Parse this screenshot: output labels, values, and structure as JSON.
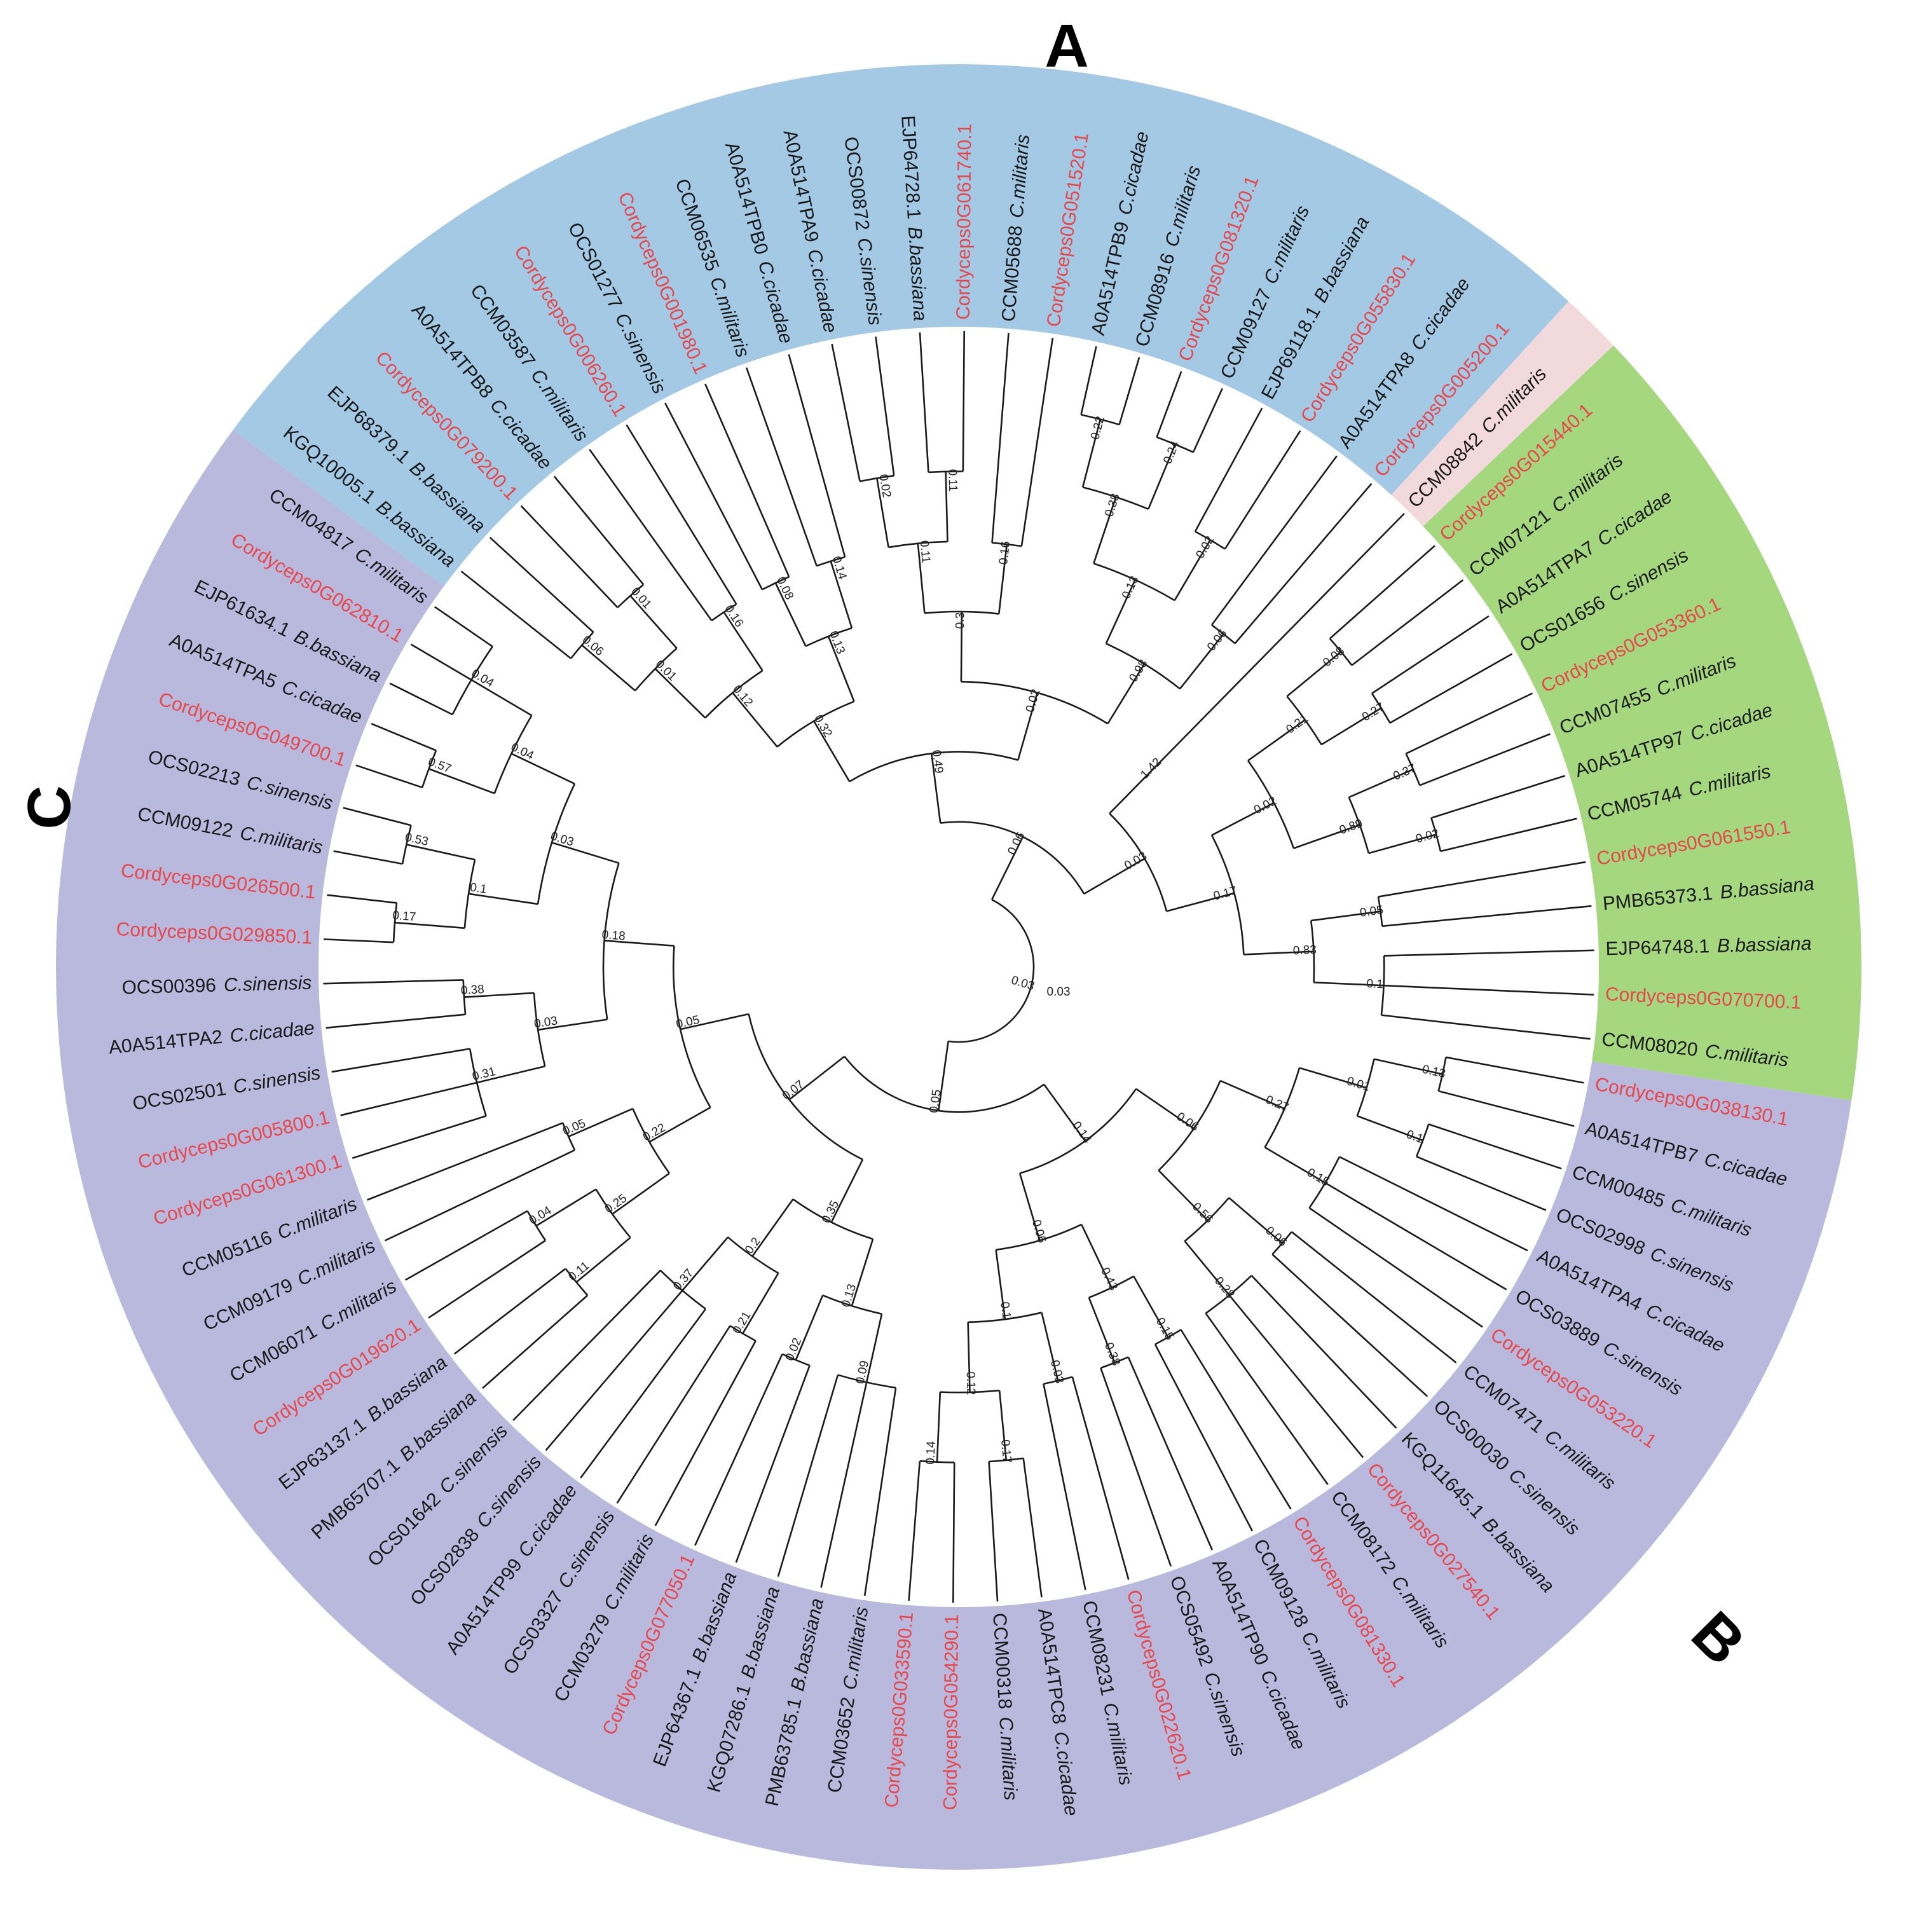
{
  "colors": {
    "A": "#a3c9e4",
    "B": "#b9b9dd",
    "C": "#a5d87e",
    "D": "#f2d9dc",
    "cordyceps": "#e8474b",
    "ink": "#1a1a1a"
  },
  "clade_labels": {
    "A": "A",
    "B": "B",
    "C": "C"
  },
  "root_label": "0.03",
  "leaves": [
    {
      "name": "KGQ10005.1",
      "sp": "B.bassiana",
      "g": "A"
    },
    {
      "name": "EJP68379.1",
      "sp": "B.bassiana",
      "g": "A"
    },
    {
      "name": "Cordyceps0G079200.1",
      "sp": "",
      "g": "A",
      "red": true
    },
    {
      "name": "A0A514TPB8",
      "sp": "C.cicadae",
      "g": "A"
    },
    {
      "name": "CCM03587",
      "sp": "C.militaris",
      "g": "A"
    },
    {
      "name": "Cordyceps0G006260.1",
      "sp": "",
      "g": "A",
      "red": true
    },
    {
      "name": "OCS01277",
      "sp": "C.sinensis",
      "g": "A"
    },
    {
      "name": "Cordyceps0G001980.1",
      "sp": "",
      "g": "A",
      "red": true
    },
    {
      "name": "CCM06535",
      "sp": "C.militaris",
      "g": "A"
    },
    {
      "name": "A0A514TPB0",
      "sp": "C.cicadae",
      "g": "A"
    },
    {
      "name": "A0A514TPA9",
      "sp": "C.cicadae",
      "g": "A"
    },
    {
      "name": "OCS00872",
      "sp": "C.sinensis",
      "g": "A"
    },
    {
      "name": "EJP64728.1",
      "sp": "B.bassiana",
      "g": "A"
    },
    {
      "name": "Cordyceps0G061740.1",
      "sp": "",
      "g": "A",
      "red": true
    },
    {
      "name": "CCM05688",
      "sp": "C.militaris",
      "g": "A"
    },
    {
      "name": "Cordyceps0G051520.1",
      "sp": "",
      "g": "A",
      "red": true
    },
    {
      "name": "A0A514TPB9",
      "sp": "C.cicadae",
      "g": "A"
    },
    {
      "name": "CCM08916",
      "sp": "C.militaris",
      "g": "A"
    },
    {
      "name": "Cordyceps0G081320.1",
      "sp": "",
      "g": "A",
      "red": true
    },
    {
      "name": "CCM09127",
      "sp": "C.militaris",
      "g": "A"
    },
    {
      "name": "EJP69118.1",
      "sp": "B.bassiana",
      "g": "A"
    },
    {
      "name": "Cordyceps0G055830.1",
      "sp": "",
      "g": "A",
      "red": true
    },
    {
      "name": "A0A514TPA8",
      "sp": "C.cicadae",
      "g": "A"
    },
    {
      "name": "Cordyceps0G005200.1",
      "sp": "",
      "g": "A",
      "red": true
    },
    {
      "name": "CCM08842",
      "sp": "C.militaris",
      "g": "D"
    },
    {
      "name": "Cordyceps0G015440.1",
      "sp": "",
      "g": "C",
      "red": true
    },
    {
      "name": "CCM07121",
      "sp": "C.militaris",
      "g": "C"
    },
    {
      "name": "A0A514TPA7",
      "sp": "C.cicadae",
      "g": "C"
    },
    {
      "name": "OCS01656",
      "sp": "C.sinensis",
      "g": "C"
    },
    {
      "name": "Cordyceps0G053360.1",
      "sp": "",
      "g": "C",
      "red": true
    },
    {
      "name": "CCM07455",
      "sp": "C.militaris",
      "g": "C"
    },
    {
      "name": "A0A514TP97",
      "sp": "C.cicadae",
      "g": "C"
    },
    {
      "name": "CCM05744",
      "sp": "C.militaris",
      "g": "C"
    },
    {
      "name": "Cordyceps0G061550.1",
      "sp": "",
      "g": "C",
      "red": true
    },
    {
      "name": "PMB65373.1",
      "sp": "B.bassiana",
      "g": "C"
    },
    {
      "name": "EJP64748.1",
      "sp": "B.bassiana",
      "g": "C"
    },
    {
      "name": "Cordyceps0G070700.1",
      "sp": "",
      "g": "C",
      "red": true
    },
    {
      "name": "CCM08020",
      "sp": "C.militaris",
      "g": "C"
    },
    {
      "name": "Cordyceps0G038130.1",
      "sp": "",
      "g": "B",
      "red": true
    },
    {
      "name": "A0A514TPB7",
      "sp": "C.cicadae",
      "g": "B"
    },
    {
      "name": "CCM00485",
      "sp": "C.militaris",
      "g": "B"
    },
    {
      "name": "OCS02998",
      "sp": "C.sinensis",
      "g": "B"
    },
    {
      "name": "A0A514TPA4",
      "sp": "C.cicadae",
      "g": "B"
    },
    {
      "name": "OCS03889",
      "sp": "C.sinensis",
      "g": "B"
    },
    {
      "name": "Cordyceps0G053220.1",
      "sp": "",
      "g": "B",
      "red": true
    },
    {
      "name": "CCM07471",
      "sp": "C.militaris",
      "g": "B"
    },
    {
      "name": "OCS00030",
      "sp": "C.sinensis",
      "g": "B"
    },
    {
      "name": "KGQ11645.1",
      "sp": "B.bassiana",
      "g": "B"
    },
    {
      "name": "Cordyceps0G027540.1",
      "sp": "",
      "g": "B",
      "red": true
    },
    {
      "name": "CCM08172",
      "sp": "C.militaris",
      "g": "B"
    },
    {
      "name": "Cordyceps0G081330.1",
      "sp": "",
      "g": "B",
      "red": true
    },
    {
      "name": "CCM09128",
      "sp": "C.militaris",
      "g": "B"
    },
    {
      "name": "A0A514TP90",
      "sp": "C.cicadae",
      "g": "B"
    },
    {
      "name": "OCS05492",
      "sp": "C.sinensis",
      "g": "B"
    },
    {
      "name": "Cordyceps0G022620.1",
      "sp": "",
      "g": "B",
      "red": true
    },
    {
      "name": "CCM08231",
      "sp": "C.militaris",
      "g": "B"
    },
    {
      "name": "A0A514TPC8",
      "sp": "C.cicadae",
      "g": "B"
    },
    {
      "name": "CCM00318",
      "sp": "C.militaris",
      "g": "B"
    },
    {
      "name": "Cordyceps0G054290.1",
      "sp": "",
      "g": "B",
      "red": true
    },
    {
      "name": "Cordyceps0G033590.1",
      "sp": "",
      "g": "B",
      "red": true
    },
    {
      "name": "CCM03652",
      "sp": "C.militaris",
      "g": "B"
    },
    {
      "name": "PMB63785.1",
      "sp": "B.bassiana",
      "g": "B"
    },
    {
      "name": "KGQ07286.1",
      "sp": "B.bassiana",
      "g": "B"
    },
    {
      "name": "EJP64367.1",
      "sp": "B.bassiana",
      "g": "B"
    },
    {
      "name": "Cordyceps0G077050.1",
      "sp": "",
      "g": "B",
      "red": true
    },
    {
      "name": "CCM03279",
      "sp": "C.militaris",
      "g": "B"
    },
    {
      "name": "OCS03327",
      "sp": "C.sinensis",
      "g": "B"
    },
    {
      "name": "A0A514TP99",
      "sp": "C.cicadae",
      "g": "B"
    },
    {
      "name": "OCS02838",
      "sp": "C.sinensis",
      "g": "B"
    },
    {
      "name": "OCS01642",
      "sp": "C.sinensis",
      "g": "B"
    },
    {
      "name": "PMB65707.1",
      "sp": "B.bassiana",
      "g": "B"
    },
    {
      "name": "EJP63137.1",
      "sp": "B.bassiana",
      "g": "B"
    },
    {
      "name": "Cordyceps0G019620.1",
      "sp": "",
      "g": "B",
      "red": true
    },
    {
      "name": "CCM06071",
      "sp": "C.militaris",
      "g": "B"
    },
    {
      "name": "CCM09179",
      "sp": "C.militaris",
      "g": "B"
    },
    {
      "name": "CCM05116",
      "sp": "C.militaris",
      "g": "B"
    },
    {
      "name": "Cordyceps0G061300.1",
      "sp": "",
      "g": "B",
      "red": true
    },
    {
      "name": "Cordyceps0G005800.1",
      "sp": "",
      "g": "B",
      "red": true
    },
    {
      "name": "OCS02501",
      "sp": "C.sinensis",
      "g": "B"
    },
    {
      "name": "A0A514TPA2",
      "sp": "C.cicadae",
      "g": "B"
    },
    {
      "name": "OCS00396",
      "sp": "C.sinensis",
      "g": "B"
    },
    {
      "name": "Cordyceps0G029850.1",
      "sp": "",
      "g": "B",
      "red": true
    },
    {
      "name": "Cordyceps0G026500.1",
      "sp": "",
      "g": "B",
      "red": true
    },
    {
      "name": "CCM09122",
      "sp": "C.militaris",
      "g": "B"
    },
    {
      "name": "OCS02213",
      "sp": "C.sinensis",
      "g": "B"
    },
    {
      "name": "Cordyceps0G049700.1",
      "sp": "",
      "g": "B",
      "red": true
    },
    {
      "name": "A0A514TPA5",
      "sp": "C.cicadae",
      "g": "B"
    },
    {
      "name": "EJP61634.1",
      "sp": "B.bassiana",
      "g": "B"
    },
    {
      "name": "Cordyceps0G062810.1",
      "sp": "",
      "g": "B",
      "red": true
    },
    {
      "name": "CCM04817",
      "sp": "C.militaris",
      "g": "B"
    }
  ],
  "tree": [
    "0.03",
    [
      "0.06",
      [
        "0.49",
        [
          "0.32",
          [
            "0.12",
            [
              "0.01",
              [
                "0.06",
                [
                  0
                ],
                [
                  1
                ]
              ],
              [
                "0.01",
                [
                  2
                ],
                [
                  3
                ]
              ]
            ],
            [
              "0.16",
              [
                4
              ],
              [
                5
              ]
            ]
          ],
          [
            "0.13",
            [
              "0.08",
              [
                6
              ],
              [
                7
              ]
            ],
            [
              "0.14",
              [
                8
              ],
              [
                9
              ]
            ]
          ]
        ],
        [
          "0.02",
          [
            "0.3",
            [
              "0.11",
              [
                "0.02",
                [
                  10
                ],
                [
                  11
                ]
              ],
              [
                "0.11",
                [
                  12
                ],
                [
                  13
                ]
              ]
            ],
            [
              "0.16",
              [
                14
              ],
              [
                15
              ]
            ]
          ],
          [
            "0.98",
            [
              "0.13",
              [
                "0.38",
                [
                  "0.22",
                  [
                    16
                  ],
                  [
                    17
                  ]
                ],
                [
                  "0.24",
                  [
                    18
                  ],
                  [
                    19
                  ]
                ]
              ],
              [
                "0.02",
                [
                  20
                ],
                [
                  21
                ]
              ]
            ],
            [
              "0.06",
              [
                22
              ],
              [
                23
              ]
            ]
          ]
        ]
      ],
      [
        "0.03",
        [
          "1.42",
          [
            24
          ]
        ],
        [
          "0.17",
          [
            "0.02",
            [
              "0.21",
              [
                "0.08",
                [
                  25
                ],
                [
                  26
                ]
              ],
              [
                "0.27",
                [
                  27
                ],
                [
                  28
                ]
              ]
            ],
            [
              "0.89",
              [
                "0.37",
                [
                  29
                ],
                [
                  30
                ]
              ],
              [
                "0.02",
                [
                  31
                ],
                [
                  32
                ]
              ]
            ]
          ],
          [
            "0.83",
            [
              "0.05",
              [
                33
              ],
              [
                34
              ]
            ],
            [
              "0.1",
              [
                35
              ],
              [
                36
              ],
              [
                37
              ]
            ]
          ]
        ]
      ]
    ],
    [
      "0.05",
      [
        "0.14",
        [
          "0.06",
          [
            "0.27",
            [
              "0.01",
              [
                "0.13",
                [
                  38
                ],
                [
                  39
                ]
              ],
              [
                "0.1",
                [
                  40
                ],
                [
                  41
                ]
              ]
            ],
            [
              "0.15",
              [
                42
              ],
              [
                43
              ],
              [
                44
              ]
            ]
          ],
          [
            "0.56",
            [
              "0.06",
              [
                45
              ],
              [
                46
              ]
            ],
            [
              "0.28",
              [
                47
              ],
              [
                48
              ],
              [
                49
              ]
            ]
          ]
        ],
        [
          "0.06",
          [
            "0.43",
            [
              "0.15",
              [
                50
              ],
              [
                51
              ]
            ],
            [
              "0.38",
              [
                52
              ],
              [
                53
              ]
            ]
          ],
          [
            "0.1",
            [
              "0.03",
              [
                54
              ],
              [
                55
              ]
            ],
            [
              "0.12",
              [
                "0.17",
                [
                  56
                ],
                [
                  57
                ]
              ],
              [
                "0.14",
                [
                  58
                ],
                [
                  59
                ]
              ]
            ]
          ]
        ]
      ],
      [
        "0.07",
        [
          "0.35",
          [
            "0.13",
            [
              "0.09",
              [
                60
              ],
              [
                61
              ],
              [
                62
              ]
            ],
            [
              "0.02",
              [
                63
              ],
              [
                64
              ]
            ]
          ],
          [
            "0.2",
            [
              "0.21",
              [
                65
              ],
              [
                66
              ]
            ],
            [
              "0.37",
              [
                67
              ],
              [
                68
              ],
              [
                69
              ]
            ]
          ]
        ],
        [
          "0.05",
          [
            "0.22",
            [
              "0.25",
              [
                "0.11",
                [
                  70
                ],
                [
                  71
                ]
              ],
              [
                "0.04",
                [
                  72
                ],
                [
                  73
                ]
              ]
            ],
            [
              "0.05",
              [
                74
              ],
              [
                75
              ]
            ]
          ],
          [
            "0.18",
            [
              "0.03",
              [
                "0.31",
                [
                  76
                ],
                [
                  77
                ],
                [
                  78
                ]
              ],
              [
                "0.38",
                [
                  79
                ],
                [
                  80
                ]
              ]
            ],
            [
              "0.03",
              [
                "0.1",
                [
                  "0.17",
                  [
                    81
                  ],
                  [
                    82
                  ]
                ],
                [
                  "0.53",
                  [
                    83
                  ],
                  [
                    84
                  ]
                ]
              ],
              [
                "0.04",
                [
                  "0.57",
                  [
                    85
                  ],
                  [
                    86
                  ]
                ],
                [
                  "0.04",
                  [
                    87
                  ],
                  [
                    88
                  ],
                  [
                    89
                  ]
                ]
              ]
            ]
          ]
        ]
      ]
    ]
  ]
}
